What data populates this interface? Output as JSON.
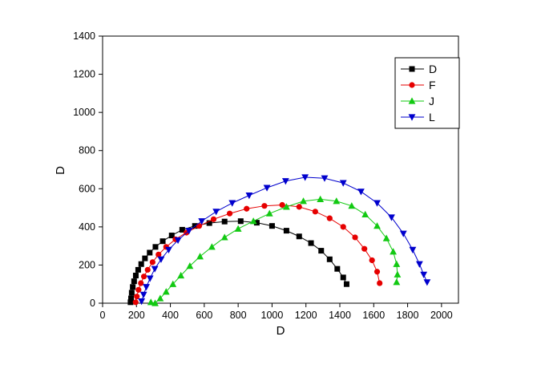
{
  "figure": {
    "background": "#ffffff"
  },
  "chart_data": {
    "type": "scatter",
    "title": "",
    "xlabel": "D",
    "ylabel": "D",
    "xlim": [
      0,
      2100
    ],
    "ylim": [
      0,
      1400
    ],
    "x_ticks": [
      0,
      200,
      400,
      600,
      800,
      1000,
      1200,
      1400,
      1600,
      1800,
      2000
    ],
    "y_ticks": [
      0,
      200,
      400,
      600,
      800,
      1000,
      1200,
      1400
    ],
    "grid": false,
    "legend_position": "top-right",
    "series": [
      {
        "name": "D",
        "color": "#000000",
        "marker": "square",
        "points": [
          [
            165,
            5
          ],
          [
            168,
            25
          ],
          [
            172,
            55
          ],
          [
            178,
            85
          ],
          [
            186,
            115
          ],
          [
            196,
            145
          ],
          [
            210,
            175
          ],
          [
            228,
            205
          ],
          [
            250,
            235
          ],
          [
            278,
            265
          ],
          [
            312,
            295
          ],
          [
            355,
            325
          ],
          [
            408,
            355
          ],
          [
            470,
            385
          ],
          [
            545,
            405
          ],
          [
            630,
            420
          ],
          [
            720,
            428
          ],
          [
            815,
            430
          ],
          [
            910,
            422
          ],
          [
            1000,
            405
          ],
          [
            1085,
            380
          ],
          [
            1160,
            350
          ],
          [
            1230,
            315
          ],
          [
            1290,
            275
          ],
          [
            1340,
            230
          ],
          [
            1385,
            180
          ],
          [
            1420,
            135
          ],
          [
            1440,
            100
          ]
        ]
      },
      {
        "name": "F",
        "color": "#e60000",
        "marker": "circle",
        "points": [
          [
            195,
            5
          ],
          [
            202,
            35
          ],
          [
            212,
            70
          ],
          [
            226,
            105
          ],
          [
            244,
            140
          ],
          [
            266,
            175
          ],
          [
            295,
            215
          ],
          [
            330,
            255
          ],
          [
            375,
            295
          ],
          [
            430,
            335
          ],
          [
            495,
            370
          ],
          [
            570,
            405
          ],
          [
            655,
            440
          ],
          [
            750,
            470
          ],
          [
            850,
            495
          ],
          [
            955,
            510
          ],
          [
            1060,
            515
          ],
          [
            1160,
            505
          ],
          [
            1255,
            480
          ],
          [
            1340,
            445
          ],
          [
            1420,
            400
          ],
          [
            1490,
            345
          ],
          [
            1545,
            285
          ],
          [
            1590,
            225
          ],
          [
            1620,
            165
          ],
          [
            1635,
            105
          ]
        ]
      },
      {
        "name": "J",
        "color": "#12c912",
        "marker": "triangle-up",
        "points": [
          [
            285,
            5
          ],
          [
            310,
            0
          ],
          [
            340,
            25
          ],
          [
            375,
            60
          ],
          [
            415,
            100
          ],
          [
            462,
            145
          ],
          [
            515,
            195
          ],
          [
            575,
            245
          ],
          [
            645,
            295
          ],
          [
            720,
            345
          ],
          [
            800,
            390
          ],
          [
            890,
            430
          ],
          [
            985,
            470
          ],
          [
            1085,
            505
          ],
          [
            1185,
            535
          ],
          [
            1285,
            545
          ],
          [
            1380,
            535
          ],
          [
            1470,
            510
          ],
          [
            1550,
            465
          ],
          [
            1620,
            405
          ],
          [
            1675,
            340
          ],
          [
            1715,
            270
          ],
          [
            1735,
            205
          ],
          [
            1740,
            150
          ],
          [
            1735,
            110
          ]
        ]
      },
      {
        "name": "L",
        "color": "#0000cd",
        "marker": "triangle-down",
        "points": [
          [
            230,
            10
          ],
          [
            242,
            45
          ],
          [
            258,
            85
          ],
          [
            280,
            130
          ],
          [
            308,
            180
          ],
          [
            345,
            230
          ],
          [
            390,
            280
          ],
          [
            445,
            330
          ],
          [
            510,
            380
          ],
          [
            585,
            430
          ],
          [
            670,
            480
          ],
          [
            765,
            525
          ],
          [
            865,
            565
          ],
          [
            970,
            605
          ],
          [
            1080,
            640
          ],
          [
            1195,
            660
          ],
          [
            1310,
            655
          ],
          [
            1420,
            630
          ],
          [
            1525,
            585
          ],
          [
            1620,
            525
          ],
          [
            1705,
            450
          ],
          [
            1775,
            365
          ],
          [
            1830,
            280
          ],
          [
            1870,
            205
          ],
          [
            1895,
            150
          ],
          [
            1915,
            110
          ]
        ]
      }
    ]
  }
}
